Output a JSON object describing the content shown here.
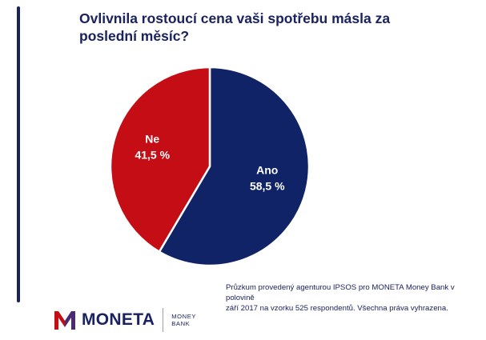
{
  "title": "Ovlivnila rostoucí cena vaši spotřebu másla za poslední měsíc?",
  "chart_data": {
    "type": "pie",
    "title": "Ovlivnila rostoucí cena vaši spotřebu másla za poslední měsíc?",
    "slices": [
      {
        "label": "Ano",
        "value": 58.5,
        "value_label": "58,5 %",
        "color": "#0f2366"
      },
      {
        "label": "Ne",
        "value": 41.5,
        "value_label": "41,5 %",
        "color": "#c40d14"
      }
    ],
    "legend": "none",
    "edge_color": "#ffffff"
  },
  "footnote": {
    "line1": "Průzkum provedený agenturou IPSOS pro MONETA Money Bank v polovině",
    "line2": "září 2017 na vzorku 525 respondentů. Všechna práva vyhrazena."
  },
  "logo": {
    "wordmark": "MONETA",
    "sub_line1": "MONEY",
    "sub_line2": "BANK",
    "icon": "moneta-m-logo-icon"
  },
  "colors": {
    "accent_bar": "#1a2360",
    "title": "#1a2360",
    "ano": "#0f2366",
    "ne": "#c40d14",
    "logo_text": "#1a2360",
    "logo_red": "#c40d14",
    "logo_purple": "#4b2a75",
    "divider": "#9aa0b8"
  }
}
